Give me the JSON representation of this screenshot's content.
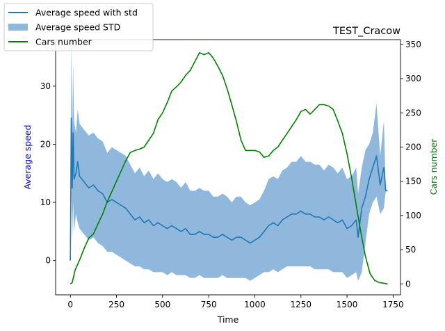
{
  "chart_data": {
    "type": "line",
    "title": "TEST_Cracow",
    "xlabel": "Time",
    "ylabel": "Average speed",
    "y2label": "Cars number",
    "xlim": [
      -80,
      1790
    ],
    "ylim": [
      -5.9,
      38
    ],
    "y2lim": [
      -16,
      357
    ],
    "x_ticks": [
      0,
      250,
      500,
      750,
      1000,
      1250,
      1500,
      1750
    ],
    "y_ticks": [
      0,
      10,
      20,
      30
    ],
    "y2_ticks": [
      0,
      50,
      100,
      150,
      200,
      250,
      300,
      350
    ],
    "legend": {
      "placement": "top-left outside",
      "entries": [
        {
          "label": "Average speed with std",
          "kind": "line",
          "color": "#1f77b4"
        },
        {
          "label": "Average speed STD",
          "kind": "patch",
          "color": "#8fb8dc"
        },
        {
          "label": "Cars number",
          "kind": "line",
          "color": "#008000"
        }
      ]
    },
    "series": [
      {
        "name": "Average speed with std",
        "axis": "left",
        "color": "#1f77b4",
        "x": [
          0,
          5,
          10,
          15,
          20,
          30,
          40,
          50,
          75,
          100,
          125,
          150,
          175,
          200,
          225,
          250,
          275,
          300,
          325,
          350,
          375,
          400,
          425,
          450,
          475,
          500,
          525,
          550,
          575,
          600,
          625,
          650,
          675,
          700,
          725,
          750,
          775,
          800,
          825,
          850,
          875,
          900,
          925,
          950,
          975,
          1000,
          1025,
          1050,
          1075,
          1100,
          1125,
          1150,
          1175,
          1200,
          1225,
          1250,
          1275,
          1300,
          1325,
          1350,
          1375,
          1400,
          1425,
          1450,
          1475,
          1500,
          1525,
          1550,
          1560,
          1580,
          1600,
          1620,
          1640,
          1660,
          1680,
          1700,
          1710,
          1720
        ],
        "y": [
          0,
          24.5,
          12.5,
          22,
          14,
          15,
          17,
          14.5,
          13.5,
          12.5,
          13,
          12,
          11.5,
          10,
          10.5,
          10,
          9.5,
          9,
          8,
          7,
          7.5,
          6.5,
          7,
          6,
          6.5,
          6,
          5.5,
          6,
          5.5,
          5,
          5.5,
          4.5,
          4.5,
          5,
          4.5,
          4.5,
          4,
          4,
          4.5,
          4,
          3.5,
          4,
          4,
          3.5,
          3,
          3.5,
          4,
          5,
          6,
          6.5,
          6,
          7,
          7.5,
          8,
          8,
          8.5,
          8,
          8,
          7.5,
          7.5,
          7,
          7.5,
          7,
          6.5,
          7,
          5.5,
          6,
          7,
          4,
          9,
          11,
          14,
          16,
          18,
          13,
          16,
          12,
          12
        ],
        "std_lower": [
          0,
          13,
          3.5,
          10,
          5,
          8,
          6.5,
          5.5,
          4.5,
          3.5,
          4,
          3,
          2.5,
          1.5,
          1.5,
          1,
          0.5,
          0,
          -0.5,
          -1,
          -1,
          -1.5,
          -1.5,
          -2,
          -2,
          -2,
          -2.5,
          -2,
          -2.5,
          -2.5,
          -2.5,
          -3,
          -3,
          -2.5,
          -3,
          -3,
          -3,
          -3,
          -2.5,
          -3,
          -3,
          -3,
          -3,
          -3,
          -3.5,
          -3,
          -2.5,
          -2,
          -2,
          -1.5,
          -2,
          -1.5,
          -1,
          -1,
          -1,
          -1,
          -1,
          -1,
          -1.5,
          -1.5,
          -1.5,
          -1.5,
          -2,
          -2,
          -2,
          -3,
          -2.5,
          -2,
          -3.5,
          -2,
          3,
          8,
          10,
          11,
          8,
          9,
          12,
          12
        ],
        "std_upper": [
          0,
          38,
          22,
          34,
          24,
          22,
          26,
          23.5,
          22.5,
          21.5,
          22,
          21,
          20.5,
          18.5,
          19.5,
          19,
          18.5,
          18,
          16.5,
          15,
          16,
          14.5,
          15.5,
          14,
          15,
          14,
          13.5,
          14,
          13.5,
          12.5,
          13.5,
          12,
          12,
          12.5,
          12,
          12,
          11,
          11,
          11.5,
          11,
          10,
          11,
          11,
          10,
          9.5,
          10,
          10.5,
          12,
          14,
          14.5,
          14,
          15.5,
          16,
          17,
          17,
          18,
          17,
          17,
          16.5,
          16.5,
          15.5,
          16.5,
          16,
          15,
          16,
          14,
          14.5,
          16,
          11.5,
          16,
          19,
          20,
          22,
          27,
          18,
          24,
          12,
          12
        ]
      },
      {
        "name": "Cars number",
        "axis": "right",
        "color": "#008000",
        "x": [
          0,
          10,
          25,
          50,
          75,
          100,
          125,
          150,
          175,
          200,
          225,
          250,
          275,
          300,
          325,
          350,
          375,
          400,
          425,
          450,
          475,
          500,
          525,
          550,
          575,
          600,
          625,
          650,
          675,
          700,
          725,
          750,
          775,
          800,
          825,
          850,
          875,
          900,
          925,
          950,
          975,
          1000,
          1025,
          1050,
          1075,
          1100,
          1125,
          1150,
          1175,
          1200,
          1225,
          1250,
          1275,
          1300,
          1325,
          1350,
          1375,
          1400,
          1425,
          1450,
          1475,
          1500,
          1525,
          1550,
          1575,
          1600,
          1625,
          1650,
          1675,
          1700,
          1720
        ],
        "y": [
          0,
          2,
          20,
          35,
          52,
          67,
          73,
          88,
          102,
          120,
          135,
          150,
          165,
          180,
          192,
          195,
          197,
          200,
          210,
          220,
          240,
          250,
          265,
          282,
          288,
          295,
          305,
          312,
          325,
          338,
          335,
          338,
          330,
          318,
          305,
          285,
          262,
          238,
          210,
          195,
          195,
          195,
          193,
          185,
          187,
          195,
          200,
          210,
          220,
          230,
          240,
          252,
          255,
          248,
          255,
          262,
          262,
          260,
          255,
          238,
          220,
          190,
          155,
          115,
          75,
          40,
          15,
          5,
          2,
          1,
          0
        ]
      }
    ]
  }
}
